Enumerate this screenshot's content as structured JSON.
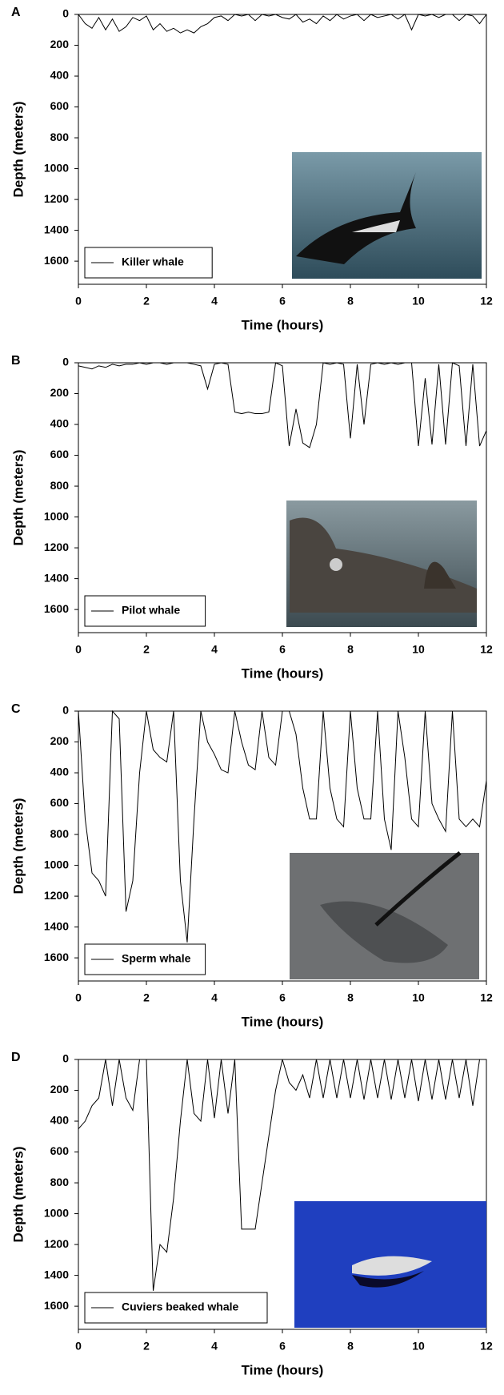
{
  "chart_data": [
    {
      "type": "line",
      "panel": "A",
      "xlabel": "Time (hours)",
      "ylabel": "Depth (meters)",
      "xlim": [
        0,
        12
      ],
      "ylim": [
        0,
        1750
      ],
      "y_inverted": true,
      "grid": false,
      "legend_position": "lower left",
      "xticks": [
        0,
        2,
        4,
        6,
        8,
        10,
        12
      ],
      "yticks": [
        0,
        200,
        400,
        600,
        800,
        1000,
        1200,
        1400,
        1600
      ],
      "x": [
        0,
        0.2,
        0.4,
        0.6,
        0.8,
        1,
        1.2,
        1.4,
        1.6,
        1.8,
        2,
        2.2,
        2.4,
        2.6,
        2.8,
        3,
        3.2,
        3.4,
        3.6,
        3.8,
        4,
        4.2,
        4.4,
        4.6,
        4.8,
        5,
        5.2,
        5.4,
        5.6,
        5.8,
        6,
        6.2,
        6.4,
        6.6,
        6.8,
        7,
        7.2,
        7.4,
        7.6,
        7.8,
        8,
        8.2,
        8.4,
        8.6,
        8.8,
        9,
        9.2,
        9.4,
        9.6,
        9.8,
        10,
        10.2,
        10.4,
        10.6,
        10.8,
        11,
        11.2,
        11.4,
        11.6,
        11.8,
        12
      ],
      "series": [
        {
          "name": "Killer whale",
          "color": "#000000",
          "values": [
            0,
            60,
            90,
            20,
            100,
            30,
            110,
            80,
            20,
            40,
            10,
            100,
            60,
            110,
            90,
            120,
            100,
            120,
            80,
            60,
            20,
            10,
            40,
            0,
            10,
            0,
            40,
            0,
            10,
            0,
            20,
            30,
            0,
            50,
            30,
            60,
            10,
            40,
            0,
            30,
            10,
            0,
            40,
            0,
            20,
            10,
            0,
            30,
            0,
            100,
            0,
            10,
            0,
            20,
            0,
            0,
            40,
            0,
            10,
            60,
            0
          ]
        }
      ]
    },
    {
      "type": "line",
      "panel": "B",
      "xlabel": "Time (hours)",
      "ylabel": "Depth (meters)",
      "xlim": [
        0,
        12
      ],
      "ylim": [
        0,
        1750
      ],
      "y_inverted": true,
      "grid": false,
      "legend_position": "lower left",
      "xticks": [
        0,
        2,
        4,
        6,
        8,
        10,
        12
      ],
      "yticks": [
        0,
        200,
        400,
        600,
        800,
        1000,
        1200,
        1400,
        1600
      ],
      "x": [
        0,
        0.2,
        0.4,
        0.6,
        0.8,
        1,
        1.2,
        1.4,
        1.6,
        1.8,
        2,
        2.2,
        2.4,
        2.6,
        2.8,
        3,
        3.2,
        3.4,
        3.6,
        3.8,
        4,
        4.2,
        4.4,
        4.6,
        4.8,
        5,
        5.2,
        5.4,
        5.6,
        5.8,
        6,
        6.2,
        6.4,
        6.6,
        6.8,
        7,
        7.2,
        7.4,
        7.6,
        7.8,
        8,
        8.2,
        8.4,
        8.6,
        8.8,
        9,
        9.2,
        9.4,
        9.6,
        9.8,
        10,
        10.2,
        10.4,
        10.6,
        10.8,
        11,
        11.2,
        11.4,
        11.6,
        11.8,
        12
      ],
      "series": [
        {
          "name": "Pilot whale",
          "color": "#000000",
          "values": [
            20,
            30,
            40,
            20,
            30,
            10,
            20,
            10,
            10,
            0,
            10,
            0,
            0,
            10,
            0,
            0,
            0,
            10,
            20,
            170,
            10,
            0,
            10,
            320,
            330,
            320,
            330,
            330,
            320,
            0,
            20,
            540,
            300,
            520,
            550,
            400,
            0,
            10,
            0,
            10,
            490,
            10,
            400,
            10,
            0,
            10,
            0,
            10,
            0,
            0,
            540,
            100,
            530,
            10,
            530,
            0,
            20,
            540,
            10,
            540,
            440
          ]
        }
      ]
    },
    {
      "type": "line",
      "panel": "C",
      "xlabel": "Time (hours)",
      "ylabel": "Depth (meters)",
      "xlim": [
        0,
        12
      ],
      "ylim": [
        0,
        1750
      ],
      "y_inverted": true,
      "grid": false,
      "legend_position": "lower left",
      "xticks": [
        0,
        2,
        4,
        6,
        8,
        10,
        12
      ],
      "yticks": [
        0,
        200,
        400,
        600,
        800,
        1000,
        1200,
        1400,
        1600
      ],
      "x": [
        0,
        0.2,
        0.4,
        0.6,
        0.8,
        1,
        1.2,
        1.4,
        1.6,
        1.8,
        2,
        2.2,
        2.4,
        2.6,
        2.8,
        3,
        3.2,
        3.4,
        3.6,
        3.8,
        4,
        4.2,
        4.4,
        4.6,
        4.8,
        5,
        5.2,
        5.4,
        5.6,
        5.8,
        6,
        6.2,
        6.4,
        6.6,
        6.8,
        7,
        7.2,
        7.4,
        7.6,
        7.8,
        8,
        8.2,
        8.4,
        8.6,
        8.8,
        9,
        9.2,
        9.4,
        9.6,
        9.8,
        10,
        10.2,
        10.4,
        10.6,
        10.8,
        11,
        11.2,
        11.4,
        11.6,
        11.8,
        12
      ],
      "series": [
        {
          "name": "Sperm whale",
          "color": "#000000",
          "values": [
            0,
            700,
            1050,
            1100,
            1200,
            0,
            50,
            1300,
            1100,
            400,
            0,
            250,
            300,
            330,
            0,
            1100,
            1500,
            700,
            0,
            200,
            280,
            380,
            400,
            0,
            200,
            350,
            380,
            0,
            300,
            350,
            0,
            0,
            150,
            500,
            700,
            700,
            0,
            500,
            700,
            750,
            0,
            500,
            700,
            700,
            0,
            700,
            900,
            0,
            300,
            700,
            750,
            0,
            600,
            700,
            780,
            0,
            700,
            750,
            700,
            750,
            450
          ]
        }
      ]
    },
    {
      "type": "line",
      "panel": "D",
      "xlabel": "Time (hours)",
      "ylabel": "Depth (meters)",
      "xlim": [
        0,
        12
      ],
      "ylim": [
        0,
        1750
      ],
      "y_inverted": true,
      "grid": false,
      "legend_position": "lower left",
      "xticks": [
        0,
        2,
        4,
        6,
        8,
        10,
        12
      ],
      "yticks": [
        0,
        200,
        400,
        600,
        800,
        1000,
        1200,
        1400,
        1600
      ],
      "x": [
        0,
        0.2,
        0.4,
        0.6,
        0.8,
        1,
        1.2,
        1.4,
        1.6,
        1.8,
        2,
        2.2,
        2.4,
        2.6,
        2.8,
        3,
        3.2,
        3.4,
        3.6,
        3.8,
        4,
        4.2,
        4.4,
        4.6,
        4.8,
        5,
        5.2,
        5.4,
        5.6,
        5.8,
        6,
        6.2,
        6.4,
        6.6,
        6.8,
        7,
        7.2,
        7.4,
        7.6,
        7.8,
        8,
        8.2,
        8.4,
        8.6,
        8.8,
        9,
        9.2,
        9.4,
        9.6,
        9.8,
        10,
        10.2,
        10.4,
        10.6,
        10.8,
        11,
        11.2,
        11.4,
        11.6,
        11.8,
        12
      ],
      "series": [
        {
          "name": "Cuviers beaked whale",
          "color": "#000000",
          "values": [
            450,
            400,
            300,
            250,
            0,
            300,
            0,
            250,
            330,
            0,
            0,
            1500,
            1200,
            1250,
            900,
            400,
            0,
            350,
            400,
            0,
            380,
            0,
            350,
            0,
            1100,
            1100,
            1100,
            800,
            500,
            200,
            0,
            150,
            200,
            100,
            250,
            0,
            250,
            0,
            250,
            0,
            250,
            0,
            260,
            0,
            250,
            0,
            260,
            0,
            250,
            0,
            270,
            0,
            260,
            0,
            260,
            0,
            250,
            0,
            300,
            0,
            0
          ]
        }
      ]
    }
  ]
}
